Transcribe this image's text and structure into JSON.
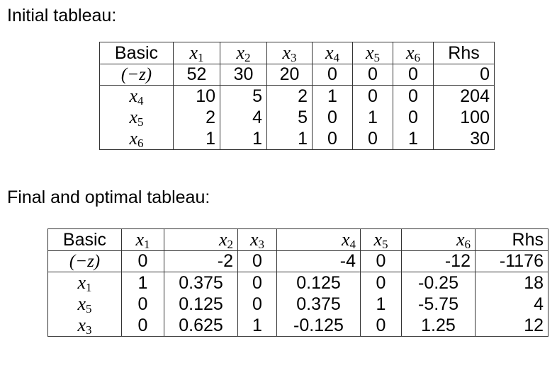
{
  "initial_heading": "Initial tableau:",
  "final_heading": "Final and optimal tableau:",
  "initial": {
    "header": {
      "basic": "Basic",
      "cols": [
        {
          "sym": "x",
          "sub": "1"
        },
        {
          "sym": "x",
          "sub": "2"
        },
        {
          "sym": "x",
          "sub": "3"
        },
        {
          "sym": "x",
          "sub": "4"
        },
        {
          "sym": "x",
          "sub": "5"
        },
        {
          "sym": "x",
          "sub": "6"
        }
      ],
      "rhs": "Rhs"
    },
    "z_row": {
      "label": "(−z)",
      "values": [
        "52",
        "30",
        "20",
        "0",
        "0",
        "0"
      ],
      "rhs": "0"
    },
    "rows": [
      {
        "var": {
          "sym": "x",
          "sub": "4"
        },
        "values": [
          "10",
          "5",
          "2",
          "1",
          "0",
          "0"
        ],
        "rhs": "204"
      },
      {
        "var": {
          "sym": "x",
          "sub": "5"
        },
        "values": [
          "2",
          "4",
          "5",
          "0",
          "1",
          "0"
        ],
        "rhs": "100"
      },
      {
        "var": {
          "sym": "x",
          "sub": "6"
        },
        "values": [
          "1",
          "1",
          "1",
          "0",
          "0",
          "1"
        ],
        "rhs": "30"
      }
    ]
  },
  "final": {
    "header": {
      "basic": "Basic",
      "cols": [
        {
          "sym": "x",
          "sub": "1"
        },
        {
          "sym": "x",
          "sub": "2"
        },
        {
          "sym": "x",
          "sub": "3"
        },
        {
          "sym": "x",
          "sub": "4"
        },
        {
          "sym": "x",
          "sub": "5"
        },
        {
          "sym": "x",
          "sub": "6"
        }
      ],
      "rhs": "Rhs"
    },
    "z_row": {
      "label": "(−z)",
      "values": [
        "0",
        "-2",
        "0",
        "-4",
        "0",
        "-12"
      ],
      "rhs": "-1176"
    },
    "rows": [
      {
        "var": {
          "sym": "x",
          "sub": "1"
        },
        "values": [
          "1",
          "0.375",
          "0",
          "0.125",
          "0",
          "-0.25"
        ],
        "rhs": "18"
      },
      {
        "var": {
          "sym": "x",
          "sub": "5"
        },
        "values": [
          "0",
          "0.125",
          "0",
          "0.375",
          "1",
          "-5.75"
        ],
        "rhs": "4"
      },
      {
        "var": {
          "sym": "x",
          "sub": "3"
        },
        "values": [
          "0",
          "0.625",
          "1",
          "-0.125",
          "0",
          "1.25"
        ],
        "rhs": "12"
      }
    ]
  }
}
